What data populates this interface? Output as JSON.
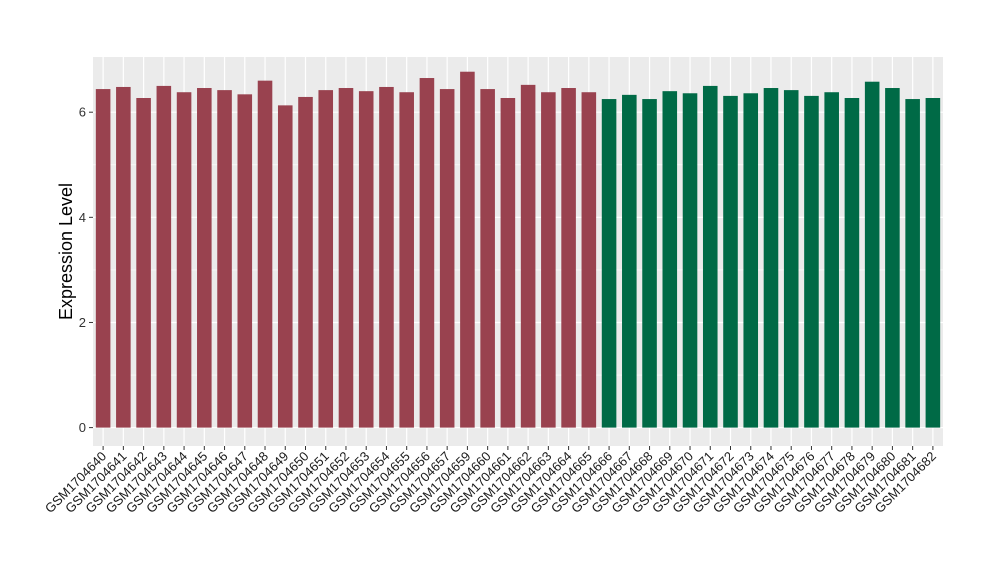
{
  "chart_data": {
    "type": "bar",
    "ylabel": "Expression Level",
    "xlabel": "",
    "ylim": [
      -0.35,
      7.05
    ],
    "yticks": [
      0,
      2,
      4,
      6
    ],
    "grid": true,
    "categories": [
      "GSM1704640",
      "GSM1704641",
      "GSM1704642",
      "GSM1704643",
      "GSM1704644",
      "GSM1704645",
      "GSM1704646",
      "GSM1704647",
      "GSM1704648",
      "GSM1704649",
      "GSM1704650",
      "GSM1704651",
      "GSM1704652",
      "GSM1704653",
      "GSM1704654",
      "GSM1704655",
      "GSM1704656",
      "GSM1704657",
      "GSM1704659",
      "GSM1704660",
      "GSM1704661",
      "GSM1704662",
      "GSM1704663",
      "GSM1704664",
      "GSM1704665",
      "GSM1704666",
      "GSM1704667",
      "GSM1704668",
      "GSM1704669",
      "GSM1704670",
      "GSM1704671",
      "GSM1704672",
      "GSM1704673",
      "GSM1704674",
      "GSM1704675",
      "GSM1704676",
      "GSM1704677",
      "GSM1704678",
      "GSM1704679",
      "GSM1704680",
      "GSM1704681",
      "GSM1704682"
    ],
    "values": [
      6.44,
      6.48,
      6.27,
      6.5,
      6.38,
      6.46,
      6.42,
      6.34,
      6.6,
      6.13,
      6.29,
      6.42,
      6.46,
      6.4,
      6.48,
      6.38,
      6.65,
      6.44,
      6.77,
      6.44,
      6.27,
      6.52,
      6.38,
      6.46,
      6.38,
      6.25,
      6.33,
      6.25,
      6.4,
      6.36,
      6.5,
      6.31,
      6.36,
      6.46,
      6.42,
      6.31,
      6.38,
      6.27,
      6.58,
      6.46,
      6.25,
      6.27
    ],
    "bar_colors": [
      "#99424f",
      "#99424f",
      "#99424f",
      "#99424f",
      "#99424f",
      "#99424f",
      "#99424f",
      "#99424f",
      "#99424f",
      "#99424f",
      "#99424f",
      "#99424f",
      "#99424f",
      "#99424f",
      "#99424f",
      "#99424f",
      "#99424f",
      "#99424f",
      "#99424f",
      "#99424f",
      "#99424f",
      "#99424f",
      "#99424f",
      "#99424f",
      "#99424f",
      "#006a46",
      "#006a46",
      "#006a46",
      "#006a46",
      "#006a46",
      "#006a46",
      "#006a46",
      "#006a46",
      "#006a46",
      "#006a46",
      "#006a46",
      "#006a46",
      "#006a46",
      "#006a46",
      "#006a46",
      "#006a46",
      "#006a46"
    ],
    "colors": {
      "panel_bg": "#ebebeb",
      "grid": "#ffffff",
      "group_a": "#99424f",
      "group_b": "#006a46"
    }
  }
}
